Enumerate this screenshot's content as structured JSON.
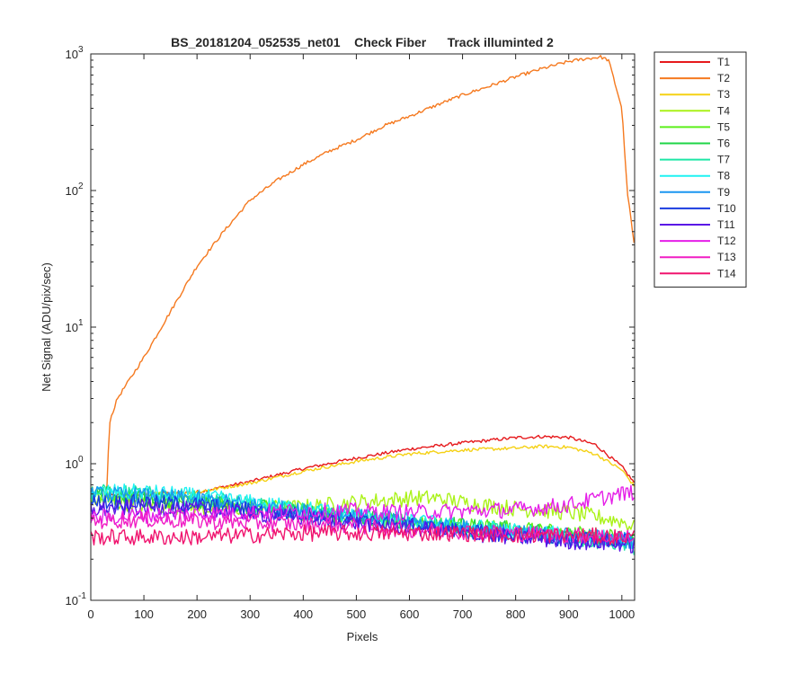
{
  "chart_data": {
    "type": "line",
    "title": "BS_20181204_052535_net01    Check Fiber      Track illuminted 2",
    "xlabel": "Pixels",
    "ylabel": "Net Signal (ADU/pix/sec)",
    "xlim": [
      0,
      1024
    ],
    "ylim": [
      0.1,
      1000
    ],
    "yscale": "log",
    "grid": false,
    "legend_position": "outside-right-top",
    "x_ticks": [
      0,
      100,
      200,
      300,
      400,
      500,
      600,
      700,
      800,
      900,
      1000
    ],
    "x_tick_labels": [
      "0",
      "100",
      "200",
      "300",
      "400",
      "500",
      "600",
      "700",
      "800",
      "900",
      "1000"
    ],
    "y_ticks": [
      {
        "value": 0.1,
        "base": "10",
        "exp": "-1"
      },
      {
        "value": 1,
        "base": "10",
        "exp": "0"
      },
      {
        "value": 10,
        "base": "10",
        "exp": "1"
      },
      {
        "value": 100,
        "base": "10",
        "exp": "2"
      },
      {
        "value": 1000,
        "base": "10",
        "exp": "3"
      }
    ],
    "series": [
      {
        "name": "T1",
        "color": "#e6191c",
        "x": [
          30,
          100,
          200,
          300,
          400,
          500,
          600,
          700,
          800,
          850,
          900,
          950,
          1000,
          1024
        ],
        "y": [
          0.58,
          0.6,
          0.62,
          0.74,
          0.92,
          1.1,
          1.28,
          1.42,
          1.55,
          1.58,
          1.56,
          1.38,
          0.95,
          0.72
        ]
      },
      {
        "name": "T2",
        "color": "#f5791f",
        "x": [
          30,
          35,
          50,
          100,
          150,
          200,
          250,
          300,
          350,
          400,
          450,
          500,
          550,
          600,
          650,
          700,
          750,
          800,
          850,
          900,
          930,
          960,
          975,
          1000,
          1010,
          1024
        ],
        "y": [
          0.6,
          2.0,
          3.0,
          6.0,
          13,
          28,
          50,
          85,
          118,
          155,
          195,
          235,
          295,
          350,
          420,
          500,
          580,
          680,
          780,
          880,
          920,
          950,
          900,
          400,
          100,
          38
        ]
      },
      {
        "name": "T3",
        "color": "#f5d114",
        "x": [
          30,
          100,
          200,
          300,
          400,
          500,
          600,
          700,
          800,
          850,
          900,
          950,
          1000,
          1024
        ],
        "y": [
          0.56,
          0.6,
          0.62,
          0.72,
          0.88,
          1.04,
          1.18,
          1.26,
          1.3,
          1.34,
          1.32,
          1.18,
          0.9,
          0.68
        ]
      },
      {
        "name": "T4",
        "color": "#aaf218",
        "x": [
          0,
          100,
          200,
          300,
          400,
          500,
          600,
          650,
          700,
          800,
          900,
          1000,
          1024
        ],
        "y": [
          0.55,
          0.5,
          0.48,
          0.47,
          0.48,
          0.52,
          0.56,
          0.56,
          0.52,
          0.47,
          0.44,
          0.38,
          0.34
        ]
      },
      {
        "name": "T5",
        "color": "#5bef1a",
        "x": [
          0,
          100,
          200,
          300,
          400,
          500,
          600,
          700,
          800,
          900,
          1000,
          1024
        ],
        "y": [
          0.58,
          0.56,
          0.52,
          0.48,
          0.44,
          0.4,
          0.37,
          0.35,
          0.33,
          0.31,
          0.29,
          0.28
        ]
      },
      {
        "name": "T6",
        "color": "#1ed446",
        "x": [
          0,
          100,
          200,
          300,
          400,
          500,
          600,
          700,
          800,
          900,
          1000,
          1024
        ],
        "y": [
          0.6,
          0.58,
          0.54,
          0.49,
          0.45,
          0.41,
          0.38,
          0.35,
          0.33,
          0.3,
          0.28,
          0.27
        ]
      },
      {
        "name": "T7",
        "color": "#1ee6a6",
        "x": [
          0,
          100,
          200,
          300,
          400,
          500,
          600,
          700,
          800,
          900,
          1000,
          1024
        ],
        "y": [
          0.62,
          0.6,
          0.56,
          0.5,
          0.45,
          0.41,
          0.37,
          0.34,
          0.31,
          0.29,
          0.26,
          0.24
        ]
      },
      {
        "name": "T8",
        "color": "#1ef2f2",
        "x": [
          0,
          100,
          200,
          300,
          400,
          500,
          600,
          700,
          800,
          900,
          1000,
          1024
        ],
        "y": [
          0.62,
          0.62,
          0.58,
          0.52,
          0.47,
          0.42,
          0.38,
          0.35,
          0.32,
          0.3,
          0.28,
          0.27
        ]
      },
      {
        "name": "T9",
        "color": "#1a96f0",
        "x": [
          0,
          100,
          200,
          300,
          400,
          500,
          600,
          700,
          800,
          900,
          1000,
          1024
        ],
        "y": [
          0.6,
          0.58,
          0.55,
          0.5,
          0.45,
          0.41,
          0.37,
          0.34,
          0.31,
          0.3,
          0.28,
          0.27
        ]
      },
      {
        "name": "T10",
        "color": "#1a3ce0",
        "x": [
          0,
          100,
          200,
          300,
          400,
          500,
          600,
          700,
          800,
          900,
          1000,
          1024
        ],
        "y": [
          0.52,
          0.52,
          0.5,
          0.46,
          0.42,
          0.38,
          0.35,
          0.32,
          0.3,
          0.28,
          0.27,
          0.26
        ]
      },
      {
        "name": "T11",
        "color": "#5a14e6",
        "x": [
          0,
          100,
          200,
          300,
          400,
          500,
          600,
          700,
          800,
          900,
          1000,
          1024
        ],
        "y": [
          0.46,
          0.48,
          0.46,
          0.43,
          0.4,
          0.37,
          0.34,
          0.31,
          0.29,
          0.27,
          0.26,
          0.25
        ]
      },
      {
        "name": "T12",
        "color": "#e51ee8",
        "x": [
          0,
          100,
          200,
          300,
          400,
          500,
          600,
          700,
          800,
          900,
          950,
          1000,
          1024
        ],
        "y": [
          0.4,
          0.42,
          0.43,
          0.44,
          0.45,
          0.45,
          0.44,
          0.45,
          0.46,
          0.5,
          0.55,
          0.6,
          0.62
        ]
      },
      {
        "name": "T13",
        "color": "#f01ec4",
        "x": [
          0,
          100,
          200,
          300,
          400,
          500,
          600,
          700,
          800,
          900,
          1000,
          1024
        ],
        "y": [
          0.38,
          0.39,
          0.38,
          0.37,
          0.36,
          0.35,
          0.33,
          0.32,
          0.31,
          0.3,
          0.29,
          0.29
        ]
      },
      {
        "name": "T14",
        "color": "#f0146e",
        "x": [
          0,
          100,
          200,
          300,
          400,
          500,
          600,
          700,
          800,
          900,
          1000,
          1024
        ],
        "y": [
          0.29,
          0.29,
          0.29,
          0.3,
          0.31,
          0.31,
          0.31,
          0.31,
          0.3,
          0.3,
          0.29,
          0.29
        ]
      }
    ]
  }
}
